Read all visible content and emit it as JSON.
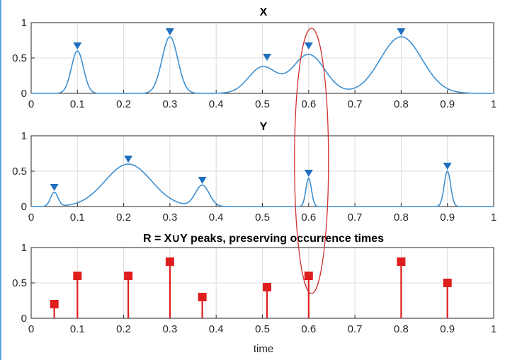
{
  "chart_data": [
    {
      "type": "line",
      "title": "X",
      "xlim": [
        0,
        1
      ],
      "ylim": [
        0,
        1
      ],
      "x_ticks": [
        "0",
        "0.1",
        "0.2",
        "0.3",
        "0.4",
        "0.5",
        "0.6",
        "0.7",
        "0.8",
        "0.9",
        "1"
      ],
      "y_ticks": [
        "0",
        "0.5",
        "1"
      ],
      "grid": true,
      "series_color": "#3d8fd1",
      "marker_color": "#1f6fc0",
      "peaks": [
        {
          "x": 0.1,
          "y": 0.6
        },
        {
          "x": 0.3,
          "y": 0.8
        },
        {
          "x": 0.51,
          "y": 0.44
        },
        {
          "x": 0.6,
          "y": 0.6
        },
        {
          "x": 0.8,
          "y": 0.8
        }
      ],
      "components": [
        {
          "x": 0.1,
          "amp": 0.6,
          "width": 0.013
        },
        {
          "x": 0.3,
          "amp": 0.8,
          "width": 0.017
        },
        {
          "x": 0.5,
          "amp": 0.37,
          "width": 0.03
        },
        {
          "x": 0.6,
          "amp": 0.55,
          "width": 0.035
        },
        {
          "x": 0.8,
          "amp": 0.8,
          "width": 0.045
        }
      ]
    },
    {
      "type": "line",
      "title": "Y",
      "xlim": [
        0,
        1
      ],
      "ylim": [
        0,
        1
      ],
      "x_ticks": [
        "0",
        "0.1",
        "0.2",
        "0.3",
        "0.4",
        "0.5",
        "0.6",
        "0.7",
        "0.8",
        "0.9",
        "1"
      ],
      "y_ticks": [
        "0",
        "0.5",
        "1"
      ],
      "grid": true,
      "series_color": "#3d8fd1",
      "marker_color": "#1f6fc0",
      "peaks": [
        {
          "x": 0.05,
          "y": 0.2
        },
        {
          "x": 0.21,
          "y": 0.6
        },
        {
          "x": 0.37,
          "y": 0.3
        },
        {
          "x": 0.6,
          "y": 0.4
        },
        {
          "x": 0.9,
          "y": 0.5
        }
      ],
      "components": [
        {
          "x": 0.05,
          "amp": 0.2,
          "width": 0.008
        },
        {
          "x": 0.21,
          "amp": 0.6,
          "width": 0.05
        },
        {
          "x": 0.37,
          "amp": 0.3,
          "width": 0.015
        },
        {
          "x": 0.6,
          "amp": 0.4,
          "width": 0.006
        },
        {
          "x": 0.9,
          "amp": 0.5,
          "width": 0.007
        }
      ]
    },
    {
      "type": "stem",
      "title": "R = X∪Y peaks, preserving occurrence times",
      "xlabel": "time",
      "xlim": [
        0,
        1
      ],
      "ylim": [
        0,
        1
      ],
      "x_ticks": [
        "0",
        "0.1",
        "0.2",
        "0.3",
        "0.4",
        "0.5",
        "0.6",
        "0.7",
        "0.8",
        "0.9",
        "1"
      ],
      "y_ticks": [
        "0",
        "0.5",
        "1"
      ],
      "grid": true,
      "series_color": "#e01e1e",
      "x": [
        0.05,
        0.1,
        0.21,
        0.3,
        0.37,
        0.51,
        0.6,
        0.8,
        0.9
      ],
      "y": [
        0.2,
        0.6,
        0.6,
        0.8,
        0.3,
        0.44,
        0.6,
        0.8,
        0.5
      ]
    }
  ],
  "annotation": {
    "shape": "ellipse",
    "color": "#d03030",
    "x": 0.6,
    "y_top_panel": 0,
    "y_top_value": 0.9,
    "y_bottom_panel": 2,
    "y_bottom_value": 0.35
  }
}
